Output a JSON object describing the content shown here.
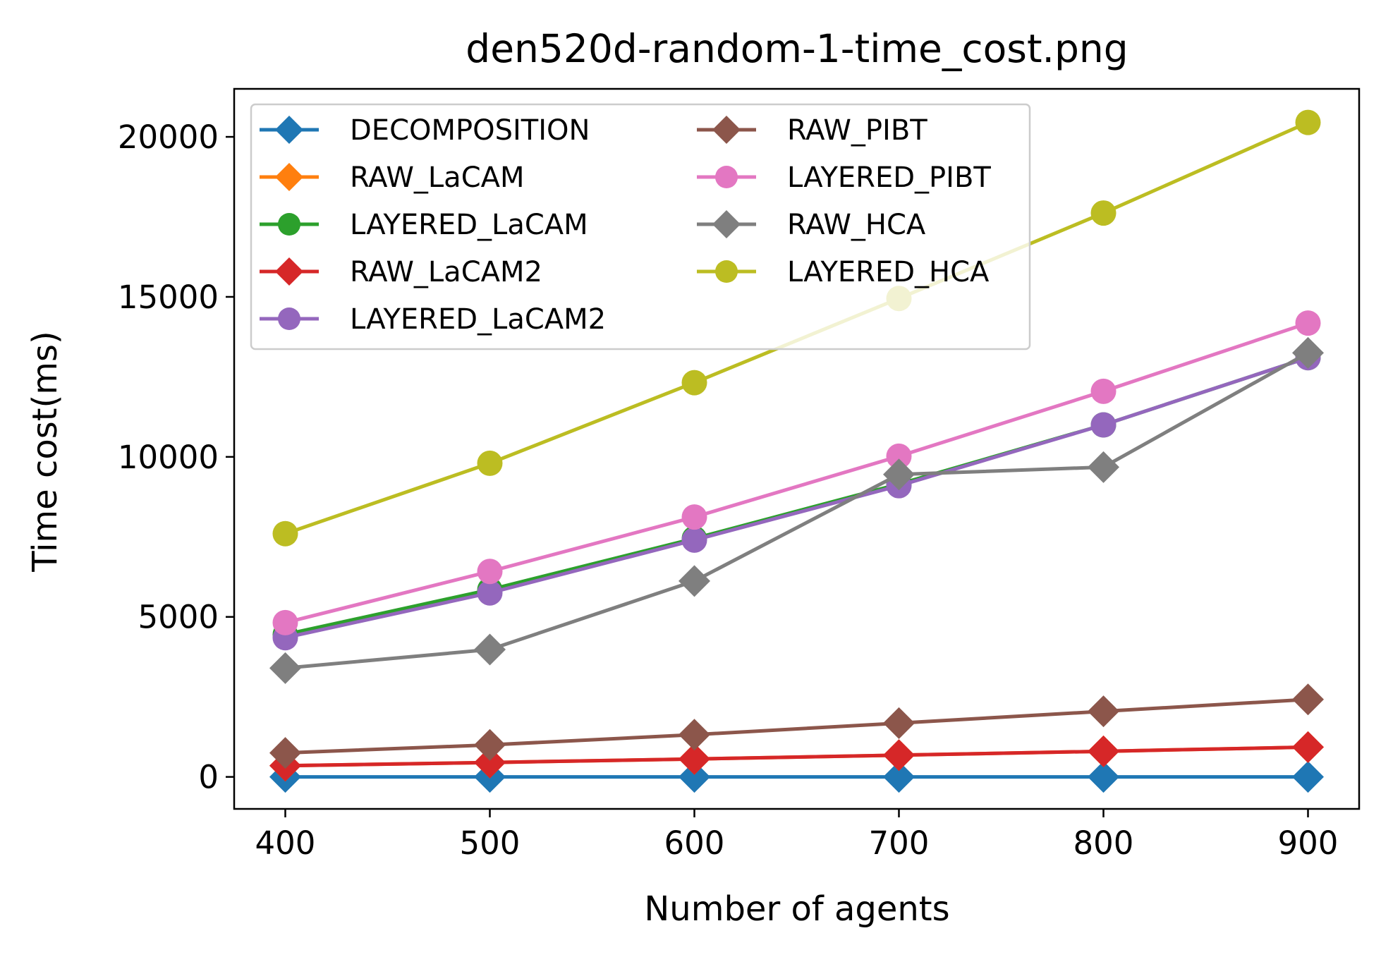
{
  "chart_data": {
    "type": "line",
    "title": "den520d-random-1-time_cost.png",
    "xlabel": "Number of agents",
    "ylabel": "Time cost(ms)",
    "x": [
      400,
      500,
      600,
      700,
      800,
      900
    ],
    "xlim": [
      375,
      925
    ],
    "ylim": [
      -1000,
      21500
    ],
    "xticks": [
      400,
      500,
      600,
      700,
      800,
      900
    ],
    "yticks": [
      0,
      5000,
      10000,
      15000,
      20000
    ],
    "grid": false,
    "legend": {
      "placement": "upper-left",
      "columns": 2
    },
    "series": [
      {
        "name": "DECOMPOSITION",
        "marker": "diamond",
        "color": "#1f77b4",
        "values": [
          0,
          0,
          0,
          0,
          0,
          0
        ]
      },
      {
        "name": "RAW_LaCAM",
        "marker": "diamond",
        "color": "#ff7f0e",
        "values": [
          350,
          450,
          560,
          680,
          800,
          930
        ]
      },
      {
        "name": "LAYERED_LaCAM",
        "marker": "circle",
        "color": "#2ca02c",
        "values": [
          4450,
          5850,
          7450,
          9150,
          11000,
          13100
        ]
      },
      {
        "name": "RAW_LaCAM2",
        "marker": "diamond",
        "color": "#d62728",
        "values": [
          350,
          450,
          560,
          680,
          800,
          930
        ]
      },
      {
        "name": "LAYERED_LaCAM2",
        "marker": "circle",
        "color": "#9467bd",
        "values": [
          4350,
          5750,
          7400,
          9100,
          11000,
          13100
        ]
      },
      {
        "name": "RAW_PIBT",
        "marker": "diamond",
        "color": "#8c564b",
        "values": [
          750,
          1000,
          1320,
          1680,
          2050,
          2420
        ]
      },
      {
        "name": "LAYERED_PIBT",
        "marker": "circle",
        "color": "#e377c2",
        "values": [
          4820,
          6420,
          8120,
          10020,
          12050,
          14180
        ]
      },
      {
        "name": "RAW_HCA",
        "marker": "diamond",
        "color": "#7f7f7f",
        "values": [
          3400,
          3980,
          6120,
          9450,
          9680,
          13250
        ]
      },
      {
        "name": "LAYERED_HCA",
        "marker": "circle",
        "color": "#bcbd22",
        "values": [
          7600,
          9800,
          12320,
          14950,
          17620,
          20450
        ]
      }
    ]
  }
}
